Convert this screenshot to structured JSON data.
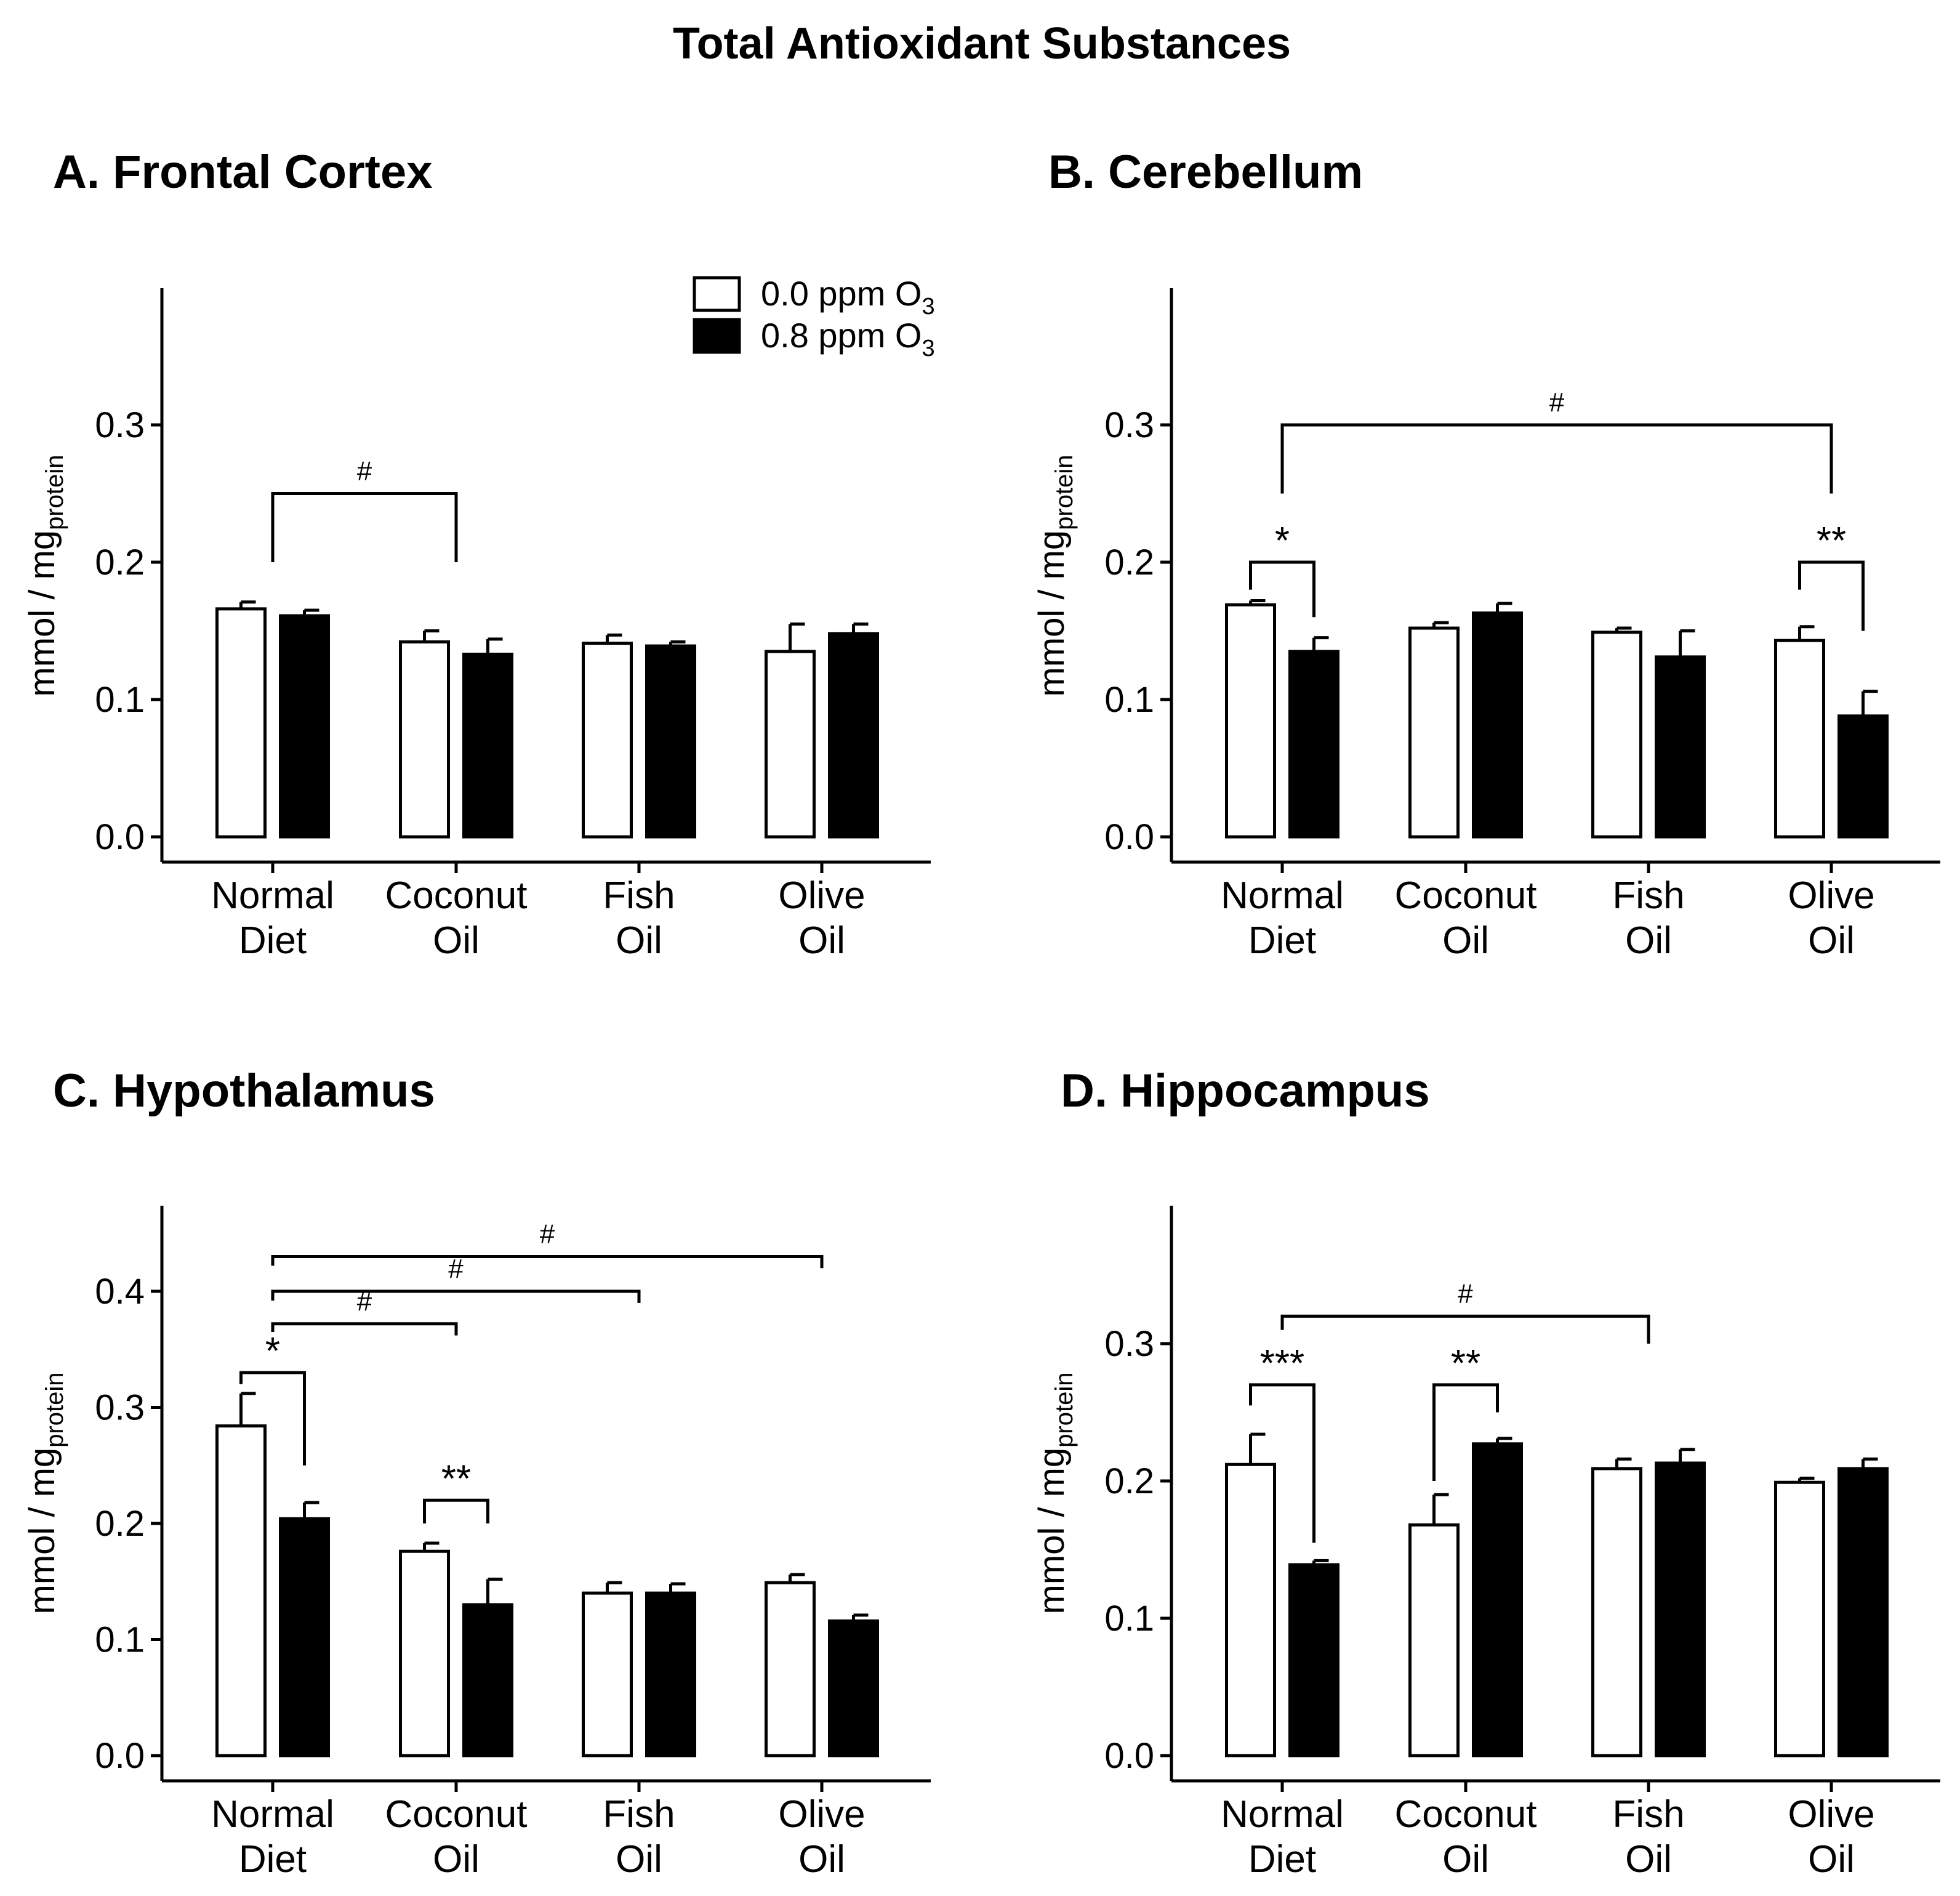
{
  "figure_title": "Total Antioxidant Substances",
  "legend": {
    "items": [
      {
        "label": "0.0 ppm O",
        "sub": "3",
        "fill": "#ffffff"
      },
      {
        "label": "0.8 ppm O",
        "sub": "3",
        "fill": "#000000"
      }
    ]
  },
  "y_axis_label": {
    "main": "mmol / mg",
    "sub": "protein"
  },
  "categories": [
    {
      "line1": "Normal",
      "line2": "Diet"
    },
    {
      "line1": "Coconut",
      "line2": "Oil"
    },
    {
      "line1": "Fish",
      "line2": "Oil"
    },
    {
      "line1": "Olive",
      "line2": "Oil"
    }
  ],
  "chart_data": [
    {
      "type": "bar",
      "title": "A. Frontal Cortex",
      "categories": [
        "Normal Diet",
        "Coconut Oil",
        "Fish Oil",
        "Olive Oil"
      ],
      "series": [
        {
          "name": "0.0 ppm O3",
          "values": [
            0.166,
            0.142,
            0.141,
            0.135
          ],
          "errors": [
            0.005,
            0.008,
            0.006,
            0.02
          ]
        },
        {
          "name": "0.8 ppm O3",
          "values": [
            0.161,
            0.133,
            0.139,
            0.148
          ],
          "errors": [
            0.004,
            0.011,
            0.003,
            0.007
          ]
        }
      ],
      "ylim": [
        0,
        0.4
      ],
      "yticks": [
        0.0,
        0.1,
        0.2,
        0.3
      ],
      "ytick_labels": [
        "0.0",
        "0.1",
        "0.2",
        "0.3"
      ],
      "ylabel": "mmol / mg protein",
      "annotations": [
        {
          "label": "#",
          "type": "between-groups",
          "from": 0,
          "to": 1,
          "y": 0.25,
          "left_end": 0.2,
          "right_end": 0.2
        }
      ]
    },
    {
      "type": "bar",
      "title": "B. Cerebellum",
      "categories": [
        "Normal Diet",
        "Coconut Oil",
        "Fish Oil",
        "Olive Oil"
      ],
      "series": [
        {
          "name": "0.0 ppm O3",
          "values": [
            0.169,
            0.152,
            0.149,
            0.143
          ],
          "errors": [
            0.003,
            0.004,
            0.003,
            0.01
          ]
        },
        {
          "name": "0.8 ppm O3",
          "values": [
            0.135,
            0.163,
            0.131,
            0.088
          ],
          "errors": [
            0.01,
            0.007,
            0.019,
            0.018
          ]
        }
      ],
      "ylim": [
        0,
        0.4
      ],
      "yticks": [
        0.0,
        0.1,
        0.2,
        0.3
      ],
      "ytick_labels": [
        "0.0",
        "0.1",
        "0.2",
        "0.3"
      ],
      "ylabel": "mmol / mg protein",
      "annotations": [
        {
          "label": "*",
          "type": "within-group",
          "group": 0,
          "y": 0.2,
          "left_end": 0.18,
          "right_end": 0.16
        },
        {
          "label": "**",
          "type": "within-group",
          "group": 3,
          "y": 0.2,
          "left_end": 0.18,
          "right_end": 0.15
        },
        {
          "label": "#",
          "type": "between-groups",
          "from": 0,
          "to": 3,
          "y": 0.3,
          "left_end": 0.25,
          "right_end": 0.25
        }
      ]
    },
    {
      "type": "bar",
      "title": "C. Hypothalamus",
      "categories": [
        "Normal Diet",
        "Coconut Oil",
        "Fish Oil",
        "Olive Oil"
      ],
      "series": [
        {
          "name": "0.0 ppm O3",
          "values": [
            0.284,
            0.176,
            0.14,
            0.149
          ],
          "errors": [
            0.028,
            0.007,
            0.009,
            0.007
          ]
        },
        {
          "name": "0.8 ppm O3",
          "values": [
            0.204,
            0.13,
            0.14,
            0.116
          ],
          "errors": [
            0.014,
            0.022,
            0.008,
            0.005
          ]
        }
      ],
      "ylim": [
        0,
        0.47
      ],
      "yticks": [
        0.0,
        0.1,
        0.2,
        0.3,
        0.4
      ],
      "ytick_labels": [
        "0.0",
        "0.1",
        "0.2",
        "0.3",
        "0.4"
      ],
      "ylabel": "mmol / mg protein",
      "annotations": [
        {
          "label": "*",
          "type": "within-group",
          "group": 0,
          "y": 0.33,
          "left_end": 0.32,
          "right_end": 0.25
        },
        {
          "label": "**",
          "type": "within-group",
          "group": 1,
          "y": 0.22,
          "left_end": 0.2,
          "right_end": 0.2
        },
        {
          "label": "#",
          "type": "between-groups",
          "from": 0,
          "to": 1,
          "y": 0.372,
          "left_end": 0.365,
          "right_end": 0.362
        },
        {
          "label": "#",
          "type": "between-groups",
          "from": 0,
          "to": 2,
          "y": 0.4,
          "left_end": 0.392,
          "right_end": 0.39
        },
        {
          "label": "#",
          "type": "between-groups",
          "from": 0,
          "to": 3,
          "y": 0.43,
          "left_end": 0.422,
          "right_end": 0.42
        }
      ]
    },
    {
      "type": "bar",
      "title": "D. Hippocampus",
      "categories": [
        "Normal Diet",
        "Coconut Oil",
        "Fish Oil",
        "Olive Oil"
      ],
      "series": [
        {
          "name": "0.0 ppm O3",
          "values": [
            0.212,
            0.168,
            0.209,
            0.199
          ],
          "errors": [
            0.022,
            0.022,
            0.007,
            0.003
          ]
        },
        {
          "name": "0.8 ppm O3",
          "values": [
            0.139,
            0.227,
            0.213,
            0.209
          ],
          "errors": [
            0.003,
            0.004,
            0.01,
            0.007
          ]
        }
      ],
      "ylim": [
        0,
        0.4
      ],
      "yticks": [
        0.0,
        0.1,
        0.2,
        0.3
      ],
      "ytick_labels": [
        "0.0",
        "0.1",
        "0.2",
        "0.3"
      ],
      "ylabel": "mmol / mg protein",
      "annotations": [
        {
          "label": "***",
          "type": "within-group",
          "group": 0,
          "y": 0.27,
          "left_end": 0.255,
          "right_end": 0.155
        },
        {
          "label": "**",
          "type": "within-group",
          "group": 1,
          "y": 0.27,
          "left_end": 0.2,
          "right_end": 0.25
        },
        {
          "label": "#",
          "type": "between-groups",
          "from": 0,
          "to": 2,
          "y": 0.32,
          "left_end": 0.31,
          "right_end": 0.3
        }
      ]
    }
  ]
}
